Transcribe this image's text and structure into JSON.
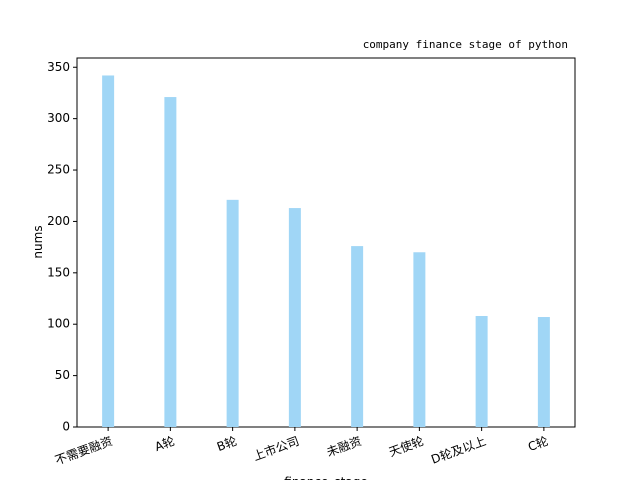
{
  "chart_data": {
    "type": "bar",
    "title": "company finance stage of python",
    "x_label": "finance_stage",
    "y_label": "nums",
    "categories": [
      "不需要融资",
      "A轮",
      "B轮",
      "上市公司",
      "未融资",
      "天使轮",
      "D轮及以上",
      "C轮"
    ],
    "values": [
      342,
      321,
      221,
      213,
      176,
      170,
      108,
      107
    ],
    "color": "#a0d6f6",
    "ylim": [
      0,
      359
    ],
    "yticks": [
      0,
      50,
      100,
      150,
      200,
      250,
      300,
      350
    ],
    "grid": false
  }
}
